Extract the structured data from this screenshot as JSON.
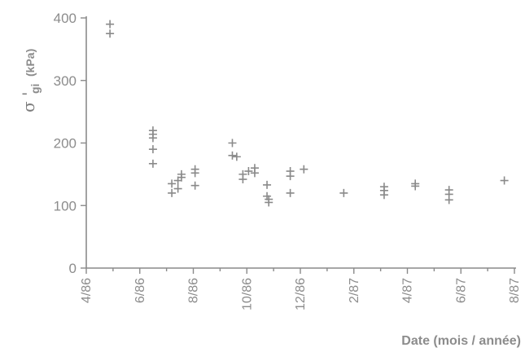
{
  "chart_data": {
    "type": "scatter",
    "marker": "plus",
    "color": "#8a8a8a",
    "title": "",
    "xlabel": "Date (mois / année)",
    "ylabel": {
      "symbol": "σ '",
      "subscript": "gi",
      "unit": "(kPa)"
    },
    "ylim": [
      0,
      400
    ],
    "yticks": [
      0,
      100,
      200,
      300,
      400
    ],
    "xlim": [
      "1986-04",
      "1987-08"
    ],
    "xticks": [
      "4/86",
      "6/86",
      "8/86",
      "10/86",
      "12/86",
      "2/87",
      "4/87",
      "6/87",
      "8/87"
    ],
    "grid": false,
    "points": [
      {
        "x": "1986-04-28",
        "y": 390
      },
      {
        "x": "1986-04-28",
        "y": 375
      },
      {
        "x": "1986-06-16",
        "y": 220
      },
      {
        "x": "1986-06-16",
        "y": 214
      },
      {
        "x": "1986-06-16",
        "y": 208
      },
      {
        "x": "1986-06-16",
        "y": 190
      },
      {
        "x": "1986-06-16",
        "y": 167
      },
      {
        "x": "1986-07-07",
        "y": 135
      },
      {
        "x": "1986-07-07",
        "y": 120
      },
      {
        "x": "1986-07-14",
        "y": 140
      },
      {
        "x": "1986-07-14",
        "y": 127
      },
      {
        "x": "1986-07-18",
        "y": 150
      },
      {
        "x": "1986-07-18",
        "y": 145
      },
      {
        "x": "1986-08-03",
        "y": 158
      },
      {
        "x": "1986-08-03",
        "y": 152
      },
      {
        "x": "1986-08-03",
        "y": 132
      },
      {
        "x": "1986-09-15",
        "y": 200
      },
      {
        "x": "1986-09-15",
        "y": 180
      },
      {
        "x": "1986-09-20",
        "y": 178
      },
      {
        "x": "1986-09-27",
        "y": 150
      },
      {
        "x": "1986-09-27",
        "y": 142
      },
      {
        "x": "1986-10-03",
        "y": 155
      },
      {
        "x": "1986-10-10",
        "y": 160
      },
      {
        "x": "1986-10-10",
        "y": 152
      },
      {
        "x": "1986-10-24",
        "y": 133
      },
      {
        "x": "1986-10-24",
        "y": 115
      },
      {
        "x": "1986-10-26",
        "y": 110
      },
      {
        "x": "1986-10-26",
        "y": 105
      },
      {
        "x": "1986-11-20",
        "y": 155
      },
      {
        "x": "1986-11-20",
        "y": 147
      },
      {
        "x": "1986-11-20",
        "y": 120
      },
      {
        "x": "1986-12-05",
        "y": 158
      },
      {
        "x": "1987-01-20",
        "y": 120
      },
      {
        "x": "1987-03-05",
        "y": 130
      },
      {
        "x": "1987-03-05",
        "y": 124
      },
      {
        "x": "1987-03-05",
        "y": 117
      },
      {
        "x": "1987-04-10",
        "y": 135
      },
      {
        "x": "1987-04-10",
        "y": 131
      },
      {
        "x": "1987-05-18",
        "y": 125
      },
      {
        "x": "1987-05-18",
        "y": 118
      },
      {
        "x": "1987-05-18",
        "y": 109
      },
      {
        "x": "1987-07-20",
        "y": 140
      }
    ]
  }
}
